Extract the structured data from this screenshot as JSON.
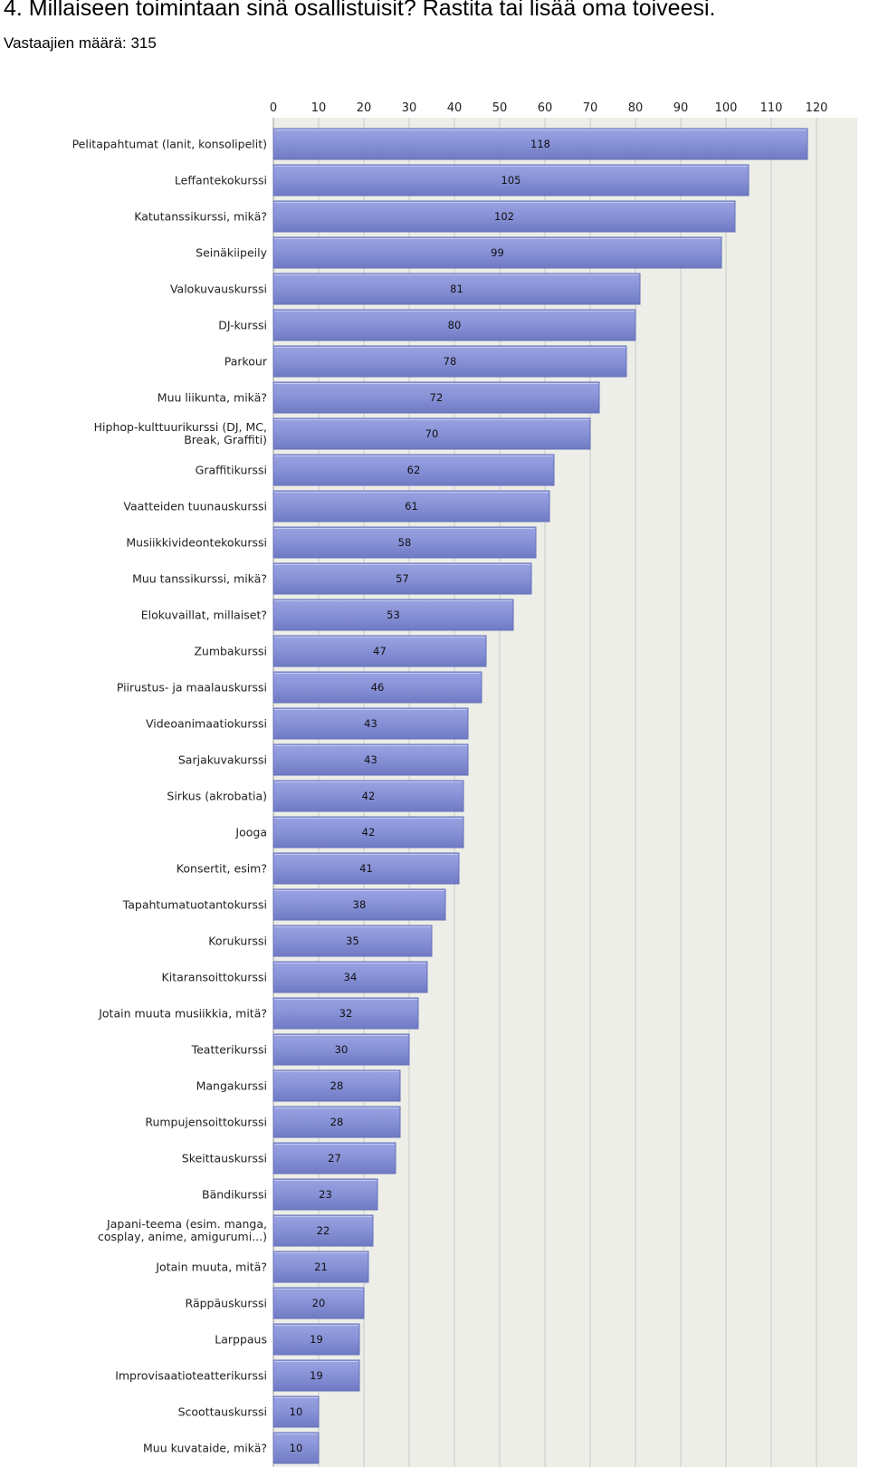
{
  "question": {
    "title": "4. Millaiseen toimintaan sinä osallistuisit? Rastita tai lisää oma toiveesi.",
    "respondents": "Vastaajien määrä: 315"
  },
  "chart_data": {
    "type": "bar",
    "orientation": "horizontal",
    "xlim": [
      0,
      120
    ],
    "ticks": [
      0,
      10,
      20,
      30,
      40,
      50,
      60,
      70,
      80,
      90,
      100,
      110,
      120
    ],
    "grid": true,
    "bar_color": "#8791d6",
    "categories": [
      [
        "Pelitapahtumat (lanit, konsolipelit)"
      ],
      [
        "Leffantekokurssi"
      ],
      [
        "Katutanssikurssi, mikä?"
      ],
      [
        "Seinäkiipeily"
      ],
      [
        "Valokuvauskurssi"
      ],
      [
        "DJ-kurssi"
      ],
      [
        "Parkour"
      ],
      [
        "Muu liikunta, mikä?"
      ],
      [
        "Hiphop-kulttuurikurssi (DJ, MC,",
        "Break, Graffiti)"
      ],
      [
        "Graffitikurssi"
      ],
      [
        "Vaatteiden tuunauskurssi"
      ],
      [
        "Musiikkivideontekokurssi"
      ],
      [
        "Muu tanssikurssi, mikä?"
      ],
      [
        "Elokuvaillat, millaiset?"
      ],
      [
        "Zumbakurssi"
      ],
      [
        "Piirustus- ja maalauskurssi"
      ],
      [
        "Videoanimaatiokurssi"
      ],
      [
        "Sarjakuvakurssi"
      ],
      [
        "Sirkus (akrobatia)"
      ],
      [
        "Jooga"
      ],
      [
        "Konsertit, esim?"
      ],
      [
        "Tapahtumatuotantokurssi"
      ],
      [
        "Korukurssi"
      ],
      [
        "Kitaransoittokurssi"
      ],
      [
        "Jotain muuta musiikkia, mitä?"
      ],
      [
        "Teatterikurssi"
      ],
      [
        "Mangakurssi"
      ],
      [
        "Rumpujensoittokurssi"
      ],
      [
        "Skeittauskurssi"
      ],
      [
        "Bändikurssi"
      ],
      [
        "Japani-teema (esim. manga,",
        "cosplay, anime, amigurumi...)"
      ],
      [
        "Jotain muuta, mitä?"
      ],
      [
        "Räppäuskurssi"
      ],
      [
        "Larppaus"
      ],
      [
        "Improvisaatioteatterikurssi"
      ],
      [
        "Scoottauskurssi"
      ],
      [
        "Muu kuvataide, mikä?"
      ]
    ],
    "values": [
      118,
      105,
      102,
      99,
      81,
      80,
      78,
      72,
      70,
      62,
      61,
      58,
      57,
      53,
      47,
      46,
      43,
      43,
      42,
      42,
      41,
      38,
      35,
      34,
      32,
      30,
      28,
      28,
      27,
      23,
      22,
      21,
      20,
      19,
      19,
      10,
      10
    ]
  }
}
